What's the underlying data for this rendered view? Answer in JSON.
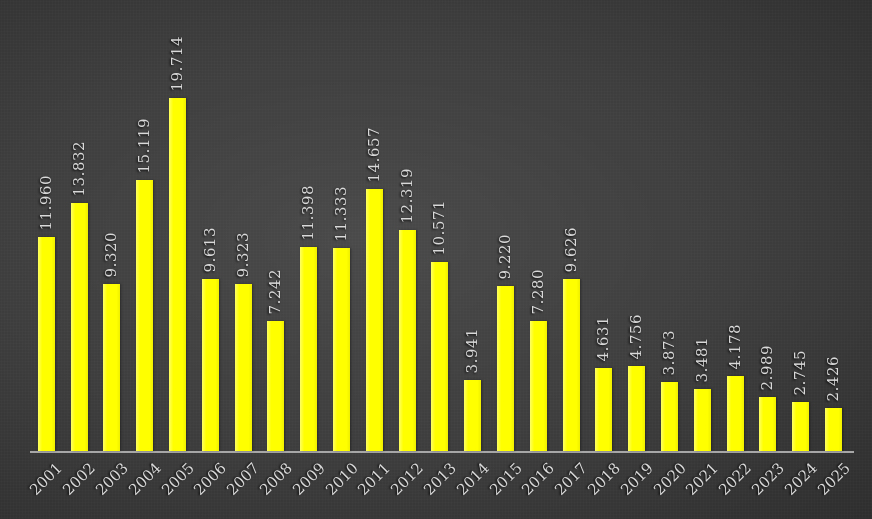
{
  "chart_data": {
    "type": "bar",
    "title": "",
    "xlabel": "",
    "ylabel": "",
    "categories": [
      "2001",
      "2002",
      "2003",
      "2004",
      "2005",
      "2006",
      "2007",
      "2008",
      "2009",
      "2010",
      "2011",
      "2012",
      "2013",
      "2014",
      "2015",
      "2016",
      "2017",
      "2018",
      "2019",
      "2020",
      "2021",
      "2022",
      "2023",
      "2024",
      "2025"
    ],
    "values": [
      11960,
      13832,
      9320,
      15119,
      19714,
      9613,
      9323,
      7242,
      11398,
      11333,
      14657,
      12319,
      10571,
      3941,
      9220,
      7280,
      9626,
      4631,
      4756,
      3873,
      3481,
      4178,
      2989,
      2745,
      2426
    ],
    "value_labels": [
      "11.960",
      "13.832",
      "9.320",
      "15.119",
      "19.714",
      "9.613",
      "9.323",
      "7.242",
      "11.398",
      "11.333",
      "14.657",
      "12.319",
      "10.571",
      "3.941",
      "9.220",
      "7.280",
      "9.626",
      "4.631",
      "4.756",
      "3.873",
      "3.481",
      "4.178",
      "2.989",
      "2.745",
      "2.426"
    ],
    "ylim": [
      0,
      19714
    ],
    "grid": false,
    "legend": false,
    "data_labels_rotation_deg": 90,
    "x_tick_rotation_deg": 45,
    "colors": {
      "bar": "#ffff00",
      "label_text": "#d9d9d9",
      "axis_line": "#a6a6a6",
      "background_center": "#4a4a4a",
      "background_edge": "#1d1d1d"
    }
  }
}
